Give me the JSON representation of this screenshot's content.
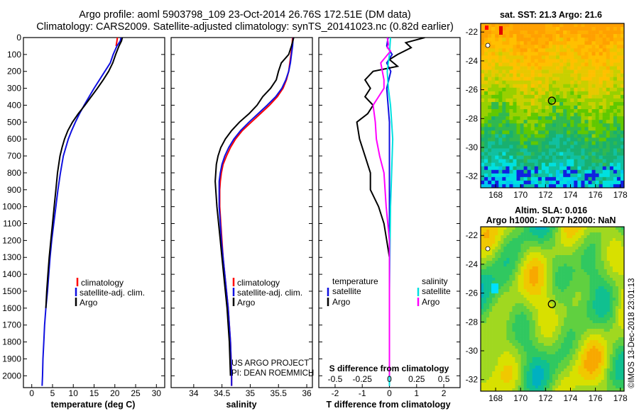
{
  "header": {
    "line1": "Argo profile: aoml 5903798_109 23-Oct-2014 26.76S 172.51E (DM data)",
    "line2": "Climatology: CARS2009. Satellite-adjusted climatology: synTS_20141023.nc (0.82d earlier)"
  },
  "colors": {
    "climatology": "#ff0000",
    "satellite": "#1010e0",
    "argo": "#000000",
    "sat_salinity": "#00e0e0",
    "argo_salinity_diff": "#ff00ff"
  },
  "depth_ticks": [
    "0",
    "100",
    "200",
    "300",
    "400",
    "500",
    "600",
    "700",
    "800",
    "900",
    "1000",
    "1100",
    "1200",
    "1300",
    "1400",
    "1500",
    "1600",
    "1700",
    "1800",
    "1900",
    "2000"
  ],
  "chart_data": [
    {
      "type": "line",
      "xlabel": "temperature (deg C)",
      "xlim": [
        -2,
        32
      ],
      "ylim": [
        0,
        2070
      ],
      "x_ticks": [
        0,
        5,
        10,
        15,
        20,
        25,
        30
      ],
      "y_inverted": true,
      "legend": [
        "climatology",
        "satellite-adj. clim.",
        "Argo"
      ],
      "legend_position": "lower-right",
      "series": [
        {
          "name": "climatology",
          "points": [
            [
              20.6,
              0
            ],
            [
              20.5,
              20
            ],
            [
              20.3,
              50
            ]
          ]
        },
        {
          "name": "satellite-adj. clim.",
          "points": [
            [
              21.5,
              0
            ],
            [
              21.3,
              20
            ],
            [
              20.5,
              50
            ],
            [
              19.6,
              100
            ],
            [
              18.9,
              150
            ],
            [
              17.6,
              200
            ],
            [
              16.3,
              250
            ],
            [
              15.0,
              300
            ],
            [
              13.8,
              350
            ],
            [
              12.6,
              400
            ],
            [
              11.5,
              450
            ],
            [
              10.5,
              500
            ],
            [
              9.6,
              550
            ],
            [
              8.8,
              600
            ],
            [
              8.2,
              650
            ],
            [
              7.6,
              700
            ],
            [
              6.9,
              800
            ],
            [
              6.3,
              900
            ],
            [
              5.8,
              1000
            ],
            [
              5.3,
              1100
            ],
            [
              4.8,
              1200
            ],
            [
              4.4,
              1300
            ],
            [
              4.1,
              1400
            ],
            [
              3.8,
              1500
            ],
            [
              3.4,
              1600
            ],
            [
              3.1,
              1700
            ],
            [
              2.9,
              1800
            ],
            [
              2.7,
              1900
            ],
            [
              2.6,
              2000
            ],
            [
              2.5,
              2060
            ]
          ]
        },
        {
          "name": "Argo",
          "points": [
            [
              21.8,
              0
            ],
            [
              21.6,
              20
            ],
            [
              21.0,
              50
            ],
            [
              20.2,
              100
            ],
            [
              19.5,
              150
            ],
            [
              18.5,
              200
            ],
            [
              17.2,
              250
            ],
            [
              15.8,
              300
            ],
            [
              14.3,
              350
            ],
            [
              12.8,
              400
            ],
            [
              11.2,
              450
            ],
            [
              9.8,
              500
            ],
            [
              8.7,
              550
            ],
            [
              7.9,
              600
            ],
            [
              7.3,
              650
            ],
            [
              6.8,
              700
            ],
            [
              6.2,
              800
            ],
            [
              5.8,
              900
            ],
            [
              5.4,
              1000
            ],
            [
              5.0,
              1100
            ],
            [
              4.6,
              1200
            ],
            [
              4.2,
              1300
            ],
            [
              3.9,
              1400
            ],
            [
              3.6,
              1500
            ],
            [
              3.4,
              1600
            ]
          ]
        }
      ]
    },
    {
      "type": "line",
      "xlabel": "salinity",
      "xlim": [
        33.6,
        36.1
      ],
      "ylim": [
        0,
        2070
      ],
      "x_ticks": [
        34,
        34.5,
        35,
        35.5,
        36
      ],
      "y_inverted": true,
      "legend": [
        "climatology",
        "satellite-adj. clim.",
        "Argo"
      ],
      "legend_position": "lower-right",
      "annotations": [
        "US ARGO PROJECT",
        "PI: DEAN ROEMMICH"
      ],
      "series": [
        {
          "name": "climatology",
          "points": [
            [
              35.75,
              0
            ],
            [
              35.74,
              50
            ],
            [
              35.72,
              100
            ],
            [
              35.7,
              150
            ],
            [
              35.68,
              200
            ],
            [
              35.64,
              250
            ],
            [
              35.58,
              300
            ],
            [
              35.48,
              350
            ],
            [
              35.34,
              400
            ],
            [
              35.18,
              450
            ],
            [
              35.02,
              500
            ],
            [
              34.86,
              550
            ],
            [
              34.74,
              600
            ],
            [
              34.65,
              650
            ],
            [
              34.58,
              700
            ],
            [
              34.52,
              750
            ],
            [
              34.49,
              800
            ],
            [
              34.47,
              850
            ],
            [
              34.46,
              900
            ],
            [
              34.46,
              1000
            ],
            [
              34.48,
              1100
            ],
            [
              34.5,
              1200
            ],
            [
              34.52,
              1300
            ],
            [
              34.55,
              1400
            ],
            [
              34.58,
              1500
            ],
            [
              34.61,
              1600
            ],
            [
              34.63,
              1700
            ],
            [
              34.65,
              1800
            ],
            [
              34.66,
              1900
            ],
            [
              34.67,
              2000
            ],
            [
              34.67,
              2060
            ]
          ]
        },
        {
          "name": "satellite-adj. clim.",
          "points": [
            [
              35.76,
              0
            ],
            [
              35.75,
              50
            ],
            [
              35.73,
              100
            ],
            [
              35.71,
              150
            ],
            [
              35.68,
              200
            ],
            [
              35.63,
              250
            ],
            [
              35.56,
              300
            ],
            [
              35.45,
              350
            ],
            [
              35.3,
              400
            ],
            [
              35.14,
              450
            ],
            [
              34.98,
              500
            ],
            [
              34.83,
              550
            ],
            [
              34.71,
              600
            ],
            [
              34.62,
              650
            ],
            [
              34.55,
              700
            ],
            [
              34.5,
              750
            ],
            [
              34.47,
              800
            ],
            [
              34.45,
              850
            ],
            [
              34.45,
              900
            ],
            [
              34.45,
              1000
            ],
            [
              34.47,
              1100
            ],
            [
              34.49,
              1200
            ],
            [
              34.52,
              1300
            ],
            [
              34.55,
              1400
            ],
            [
              34.58,
              1500
            ],
            [
              34.61,
              1600
            ],
            [
              34.63,
              1700
            ],
            [
              34.65,
              1800
            ],
            [
              34.66,
              1900
            ],
            [
              34.67,
              2000
            ],
            [
              34.67,
              2060
            ]
          ]
        },
        {
          "name": "Argo",
          "points": [
            [
              35.77,
              0
            ],
            [
              35.73,
              50
            ],
            [
              35.68,
              100
            ],
            [
              35.55,
              150
            ],
            [
              35.5,
              200
            ],
            [
              35.46,
              250
            ],
            [
              35.36,
              300
            ],
            [
              35.22,
              350
            ],
            [
              35.12,
              400
            ],
            [
              34.98,
              450
            ],
            [
              34.81,
              500
            ],
            [
              34.67,
              550
            ],
            [
              34.56,
              600
            ],
            [
              34.48,
              650
            ],
            [
              34.43,
              700
            ],
            [
              34.4,
              750
            ],
            [
              34.39,
              800
            ],
            [
              34.38,
              850
            ],
            [
              34.39,
              900
            ],
            [
              34.41,
              1000
            ],
            [
              34.44,
              1100
            ],
            [
              34.47,
              1200
            ],
            [
              34.5,
              1300
            ],
            [
              34.53,
              1400
            ],
            [
              34.56,
              1500
            ],
            [
              34.59,
              1600
            ],
            [
              34.61,
              1700
            ],
            [
              34.63,
              1800
            ],
            [
              34.64,
              1900
            ],
            [
              34.65,
              2000
            ]
          ]
        }
      ]
    },
    {
      "type": "line",
      "xlabel": "T difference from climatology",
      "x_ticks": [
        -2,
        -1,
        0,
        1,
        2
      ],
      "xlim": [
        -2.6,
        2.6
      ],
      "top_xlabel": "S difference from climatology",
      "top_x_ticks": [
        "-0.5",
        "-0.25",
        "0",
        "0.25",
        "0.5"
      ],
      "ylim": [
        0,
        2070
      ],
      "y_inverted": true,
      "legend": [
        "temperature",
        "satellite",
        "Argo",
        "salinity",
        "satellite",
        "Argo"
      ],
      "legend_position": "lower",
      "series": [
        {
          "name": "temperature satellite",
          "points": [
            [
              -0.05,
              0
            ],
            [
              -0.1,
              50
            ],
            [
              0.1,
              100
            ],
            [
              -0.1,
              150
            ],
            [
              0.05,
              200
            ],
            [
              -0.1,
              300
            ],
            [
              -0.05,
              400
            ],
            [
              0.0,
              500
            ],
            [
              0.0,
              1000
            ],
            [
              0.0,
              1500
            ],
            [
              0.0,
              2060
            ]
          ]
        },
        {
          "name": "temperature Argo",
          "points": [
            [
              1.3,
              0
            ],
            [
              0.6,
              30
            ],
            [
              0.8,
              60
            ],
            [
              0.3,
              100
            ],
            [
              0.0,
              130
            ],
            [
              0.3,
              170
            ],
            [
              -0.6,
              200
            ],
            [
              -0.9,
              250
            ],
            [
              -0.7,
              300
            ],
            [
              -0.9,
              350
            ],
            [
              -0.6,
              400
            ],
            [
              -0.8,
              450
            ],
            [
              -1.2,
              500
            ],
            [
              -1.1,
              600
            ],
            [
              -0.9,
              700
            ],
            [
              -0.7,
              800
            ],
            [
              -0.7,
              900
            ],
            [
              -0.4,
              1000
            ],
            [
              -0.2,
              1100
            ],
            [
              -0.1,
              1200
            ],
            [
              0.0,
              1300
            ],
            [
              0.0,
              1400
            ],
            [
              0.0,
              1500
            ],
            [
              0.0,
              1600
            ]
          ]
        },
        {
          "name": "salinity satellite",
          "points": [
            [
              0.01,
              0
            ],
            [
              0.0,
              100
            ],
            [
              -0.02,
              200
            ],
            [
              -0.01,
              300
            ],
            [
              0.01,
              400
            ],
            [
              0.02,
              500
            ],
            [
              0.03,
              600
            ],
            [
              0.02,
              800
            ],
            [
              0.01,
              1000
            ],
            [
              0.0,
              1500
            ],
            [
              0.0,
              2060
            ]
          ]
        },
        {
          "name": "salinity Argo",
          "points": [
            [
              -0.02,
              0
            ],
            [
              -0.01,
              40
            ],
            [
              -0.02,
              60
            ],
            [
              0.01,
              80
            ],
            [
              -0.08,
              150
            ],
            [
              -0.05,
              250
            ],
            [
              -0.05,
              300
            ],
            [
              -0.1,
              350
            ],
            [
              -0.15,
              400
            ],
            [
              -0.13,
              500
            ],
            [
              -0.12,
              600
            ],
            [
              -0.09,
              700
            ],
            [
              -0.05,
              800
            ],
            [
              -0.03,
              1000
            ],
            [
              0.0,
              1200
            ],
            [
              0.0,
              1500
            ],
            [
              0.0,
              2000
            ]
          ]
        }
      ]
    },
    {
      "type": "heatmap",
      "title": "sat. SST: 21.3  Argo: 21.6",
      "x_ticks": [
        168,
        170,
        172,
        174,
        176,
        178
      ],
      "y_ticks": [
        -22,
        -24,
        -26,
        -28,
        -30,
        -32
      ],
      "xlim": [
        166.8,
        178.3
      ],
      "ylim": [
        -32.8,
        -21.4
      ],
      "marker": {
        "lon": 172.51,
        "lat": -26.76
      }
    },
    {
      "type": "heatmap",
      "title": "Altim. SLA: 0.016",
      "subtitle": "Argo h1000: -0.077 h2000: NaN",
      "x_ticks": [
        168,
        170,
        172,
        174,
        176,
        178
      ],
      "y_ticks": [
        -22,
        -24,
        -26,
        -28,
        -30,
        -32
      ],
      "xlim": [
        166.8,
        178.3
      ],
      "ylim": [
        -32.8,
        -21.4
      ],
      "marker": {
        "lon": 172.51,
        "lat": -26.76
      }
    }
  ],
  "credit": "©IMOS 13-Dec-2018 23:01:13"
}
